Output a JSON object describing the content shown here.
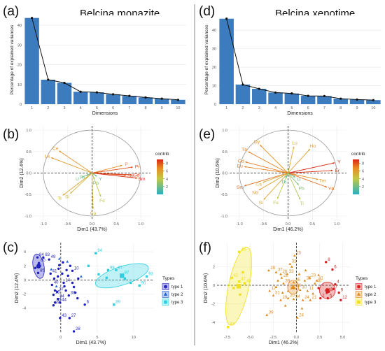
{
  "chart_data": [
    {
      "panel": "(a)",
      "type": "bar",
      "title": "Belcina monazite",
      "xlabel": "Dimensions",
      "ylabel": "Percentage of explained variances",
      "categories": [
        "1",
        "2",
        "3",
        "4",
        "5",
        "6",
        "7",
        "8",
        "9",
        "10"
      ],
      "values": [
        43.7,
        12.4,
        10.8,
        6.3,
        6.0,
        5.0,
        4.2,
        3.4,
        2.8,
        2.2
      ],
      "ylim": [
        0,
        45
      ],
      "yticks": [
        "0",
        "10",
        "20",
        "30",
        "40"
      ]
    },
    {
      "panel": "(d)",
      "type": "bar",
      "title": "Belcina xenotime",
      "xlabel": "Dimensions",
      "ylabel": "Percentage of explained variances",
      "categories": [
        "1",
        "2",
        "3",
        "4",
        "5",
        "6",
        "7",
        "8",
        "9",
        "10"
      ],
      "values": [
        46.2,
        10.6,
        8.3,
        6.3,
        5.8,
        4.5,
        4.4,
        3.0,
        2.5,
        2.2
      ],
      "ylim": [
        0,
        48
      ],
      "yticks": [
        "0",
        "10",
        "20",
        "30",
        "40"
      ]
    },
    {
      "panel": "(b)",
      "type": "scatter",
      "subtype": "pca-variable-correlation-circle",
      "xlabel": "Dim1 (43.7%)",
      "ylabel": "Dim2 (12.4%)",
      "xlim": [
        -1.2,
        1.2
      ],
      "ylim": [
        -1.1,
        1.1
      ],
      "xticks": [
        "-1.0",
        "-0.5",
        "0.0",
        "0.5",
        "1.0"
      ],
      "yticks": [
        "-1.0",
        "-0.5",
        "0.0",
        "0.5",
        "1.0"
      ],
      "legend_title": "contrib",
      "legend_ticks": [
        "8",
        "6",
        "4",
        "2"
      ],
      "legend_range": [
        0,
        9
      ],
      "vectors": [
        {
          "label": "Ce",
          "x": -0.68,
          "y": 0.52,
          "c": 6.5
        },
        {
          "label": "La",
          "x": -0.84,
          "y": 0.36,
          "c": 6.2
        },
        {
          "label": "P",
          "x": 0.62,
          "y": 0.18,
          "c": 6.8
        },
        {
          "label": "Pr",
          "x": 0.84,
          "y": 0.14,
          "c": 8.0
        },
        {
          "label": "Sm",
          "x": 0.93,
          "y": -0.12,
          "c": 8.8
        },
        {
          "label": "Nd",
          "x": 0.7,
          "y": -0.05,
          "c": 8.2
        },
        {
          "label": "Gd",
          "x": 0.82,
          "y": -0.04,
          "c": 8.5
        },
        {
          "label": "U",
          "x": -0.22,
          "y": -0.1,
          "c": 2.0
        },
        {
          "label": "Y",
          "x": 0.1,
          "y": -0.08,
          "c": 1.5
        },
        {
          "label": "Th",
          "x": -0.12,
          "y": -0.06,
          "c": 1.8
        },
        {
          "label": "Pb",
          "x": 0.05,
          "y": -0.15,
          "c": 2.5
        },
        {
          "label": "Ti",
          "x": -0.6,
          "y": -0.52,
          "c": 5.5
        },
        {
          "label": "Si",
          "x": -0.45,
          "y": -0.48,
          "c": 5.0
        },
        {
          "label": "Fe",
          "x": 0.18,
          "y": -0.55,
          "c": 4.0
        },
        {
          "label": "Ca",
          "x": 0.02,
          "y": -0.84,
          "c": 5.0
        }
      ]
    },
    {
      "panel": "(e)",
      "type": "scatter",
      "subtype": "pca-variable-correlation-circle",
      "xlabel": "Dim1 (46.2%)",
      "ylabel": "Dim2 (10.6%)",
      "xlim": [
        -1.2,
        1.2
      ],
      "ylim": [
        -1.1,
        1.1
      ],
      "xticks": [
        "-1.0",
        "-0.5",
        "0.0",
        "0.5",
        "1.0"
      ],
      "yticks": [
        "-1.0",
        "-0.5",
        "0.0",
        "0.5",
        "1.0"
      ],
      "legend_title": "contrib",
      "legend_ticks": [
        "8",
        "6",
        "4",
        "2"
      ],
      "legend_range": [
        0,
        9
      ],
      "vectors": [
        {
          "label": "Dy",
          "x": -0.58,
          "y": 0.66,
          "c": 6.5
        },
        {
          "label": "Tb",
          "x": -0.82,
          "y": 0.5,
          "c": 7.0
        },
        {
          "label": "Gd",
          "x": -0.88,
          "y": 0.26,
          "c": 7.2
        },
        {
          "label": "Eu",
          "x": -0.9,
          "y": 0.15,
          "c": 7.0
        },
        {
          "label": "Sm",
          "x": -0.9,
          "y": -0.3,
          "c": 7.5
        },
        {
          "label": "Nd",
          "x": -0.6,
          "y": -0.4,
          "c": 6.0
        },
        {
          "label": "Si",
          "x": -0.5,
          "y": -0.62,
          "c": 5.5
        },
        {
          "label": "Fe",
          "x": -0.22,
          "y": -0.6,
          "c": 4.0
        },
        {
          "label": "Ca",
          "x": -0.52,
          "y": -0.22,
          "c": 5.0
        },
        {
          "label": "Er",
          "x": 0.92,
          "y": 0.06,
          "c": 8.8
        },
        {
          "label": "Y",
          "x": 0.96,
          "y": 0.24,
          "c": 9.0
        },
        {
          "label": "Tm",
          "x": 0.62,
          "y": -0.15,
          "c": 6.5
        },
        {
          "label": "Yb",
          "x": 0.8,
          "y": -0.33,
          "c": 7.5
        },
        {
          "label": "Ho",
          "x": 0.45,
          "y": 0.56,
          "c": 6.0
        },
        {
          "label": "Lu",
          "x": 0.12,
          "y": 0.62,
          "c": 5.5
        },
        {
          "label": "Ti",
          "x": 0.25,
          "y": -0.62,
          "c": 3.5
        },
        {
          "label": "U",
          "x": 0.15,
          "y": -0.1,
          "c": 1.5
        },
        {
          "label": "Th",
          "x": -0.05,
          "y": -0.12,
          "c": 1.5
        },
        {
          "label": "Pb",
          "x": 0.22,
          "y": -0.28,
          "c": 2.5
        }
      ]
    },
    {
      "panel": "(c)",
      "type": "scatter",
      "subtype": "pca-individuals",
      "xlabel": "Dim1 (43.7%)",
      "ylabel": "Dim2 (12.4%)",
      "xlim": [
        -4.5,
        12.8
      ],
      "ylim": [
        -7.6,
        5.3
      ],
      "xticks": [
        "0",
        "5",
        "10"
      ],
      "xtickvals": [
        0,
        5,
        10
      ],
      "yticks": [
        "4",
        "2",
        "0",
        "-2",
        "-4"
      ],
      "ytickvals": [
        4,
        2,
        0,
        -2,
        -4
      ],
      "legend_title": "Types",
      "series": [
        {
          "name": "type 1",
          "marker": "circle",
          "color": "#1f1fbf",
          "points": [
            [
              -3.2,
              3.2,
              "84"
            ],
            [
              -2.4,
              3.2,
              "83"
            ],
            [
              -1.6,
              2.9,
              "49"
            ],
            [
              -3.0,
              2.4,
              "80"
            ],
            [
              -3.5,
              1.7,
              "78"
            ],
            [
              -3.1,
              1.0,
              "85"
            ],
            [
              -1.4,
              0.9,
              "41"
            ],
            [
              1.6,
              1.3,
              "10"
            ],
            [
              -1.2,
              -0.7,
              "40"
            ],
            [
              0.4,
              -0.4,
              "14"
            ],
            [
              -0.5,
              -1.7,
              "37"
            ],
            [
              -1.0,
              -2.1,
              "15"
            ],
            [
              -0.4,
              -2.7,
              "34"
            ],
            [
              -0.1,
              -3.2,
              "44"
            ],
            [
              -1.0,
              -3.6,
              "39"
            ],
            [
              -0.8,
              -3.2,
              "45"
            ],
            [
              1.1,
              -2.2,
              "38"
            ],
            [
              3.3,
              -3.5,
              "6"
            ],
            [
              1.2,
              -5.4,
              "27"
            ],
            [
              -0.1,
              -5.4,
              "43"
            ],
            [
              1.8,
              -7.3,
              "28"
            ],
            [
              0.8,
              1.4,
              ""
            ],
            [
              1.0,
              0.6,
              ""
            ],
            [
              0.2,
              0.9,
              ""
            ],
            [
              -0.4,
              0.5,
              ""
            ],
            [
              1.6,
              -0.4,
              ""
            ],
            [
              2.0,
              -1.8,
              ""
            ],
            [
              -0.8,
              -1.5,
              ""
            ],
            [
              0.7,
              -1.5,
              ""
            ],
            [
              -0.2,
              2.1,
              ""
            ],
            [
              1.3,
              2.0,
              ""
            ],
            [
              2.4,
              0.2,
              ""
            ],
            [
              -0.9,
              0.2,
              ""
            ],
            [
              0.5,
              -0.9,
              ""
            ],
            [
              1.8,
              -1.0,
              ""
            ],
            [
              -0.3,
              1.6,
              ""
            ],
            [
              0.3,
              2.5,
              ""
            ],
            [
              2.3,
              -2.6,
              ""
            ]
          ]
        },
        {
          "name": "type 2",
          "marker": "triangle",
          "color": "#2060d0",
          "points": [
            [
              -0.2,
              3.0,
              ""
            ],
            [
              0.9,
              2.6,
              ""
            ],
            [
              -1.3,
              1.5,
              ""
            ],
            [
              2.8,
              0.5,
              ""
            ],
            [
              -0.6,
              -0.9,
              ""
            ]
          ]
        },
        {
          "name": "type 3",
          "marker": "square",
          "color": "#2ed0e0",
          "points": [
            [
              4.8,
              3.8,
              "94"
            ],
            [
              6.5,
              1.4,
              "98"
            ],
            [
              7.6,
              1.4,
              "97"
            ],
            [
              8.5,
              0.7,
              "87"
            ],
            [
              11.8,
              0.5,
              "93"
            ],
            [
              10.8,
              -0.8,
              "90"
            ],
            [
              7.3,
              -3.5,
              "89"
            ],
            [
              3.8,
              2.0,
              ""
            ],
            [
              5.2,
              0.8,
              ""
            ],
            [
              8.8,
              0.2,
              ""
            ],
            [
              9.6,
              -0.4,
              ""
            ],
            [
              6.3,
              0.3,
              ""
            ]
          ]
        }
      ],
      "ellipses": [
        {
          "series": "type 1",
          "cx": -3.05,
          "cy": 1.95,
          "rx": 0.75,
          "ry": 1.75,
          "rot": -10
        },
        {
          "series": "type 3",
          "cx": 8.4,
          "cy": 0.6,
          "rx": 3.8,
          "ry": 1.3,
          "rot": -18
        }
      ]
    },
    {
      "panel": "(f)",
      "type": "scatter",
      "subtype": "pca-individuals",
      "xlabel": "Dim1 (46.2%)",
      "ylabel": "Dim2 (10.6%)",
      "xlim": [
        -8.6,
        5.8
      ],
      "ylim": [
        -5.2,
        4.6
      ],
      "xticks": [
        "-7.5",
        "-5.0",
        "-2.5",
        "0.0",
        "2.5",
        "5.0"
      ],
      "xtickvals": [
        -7.5,
        -5,
        -2.5,
        0,
        2.5,
        5
      ],
      "yticks": [
        "2",
        "0",
        "-2",
        "-4"
      ],
      "ytickvals": [
        2,
        0,
        -2,
        -4
      ],
      "legend_title": "Types",
      "series": [
        {
          "name": "type 1",
          "marker": "circle",
          "color": "#d82020",
          "points": [
            [
              3.2,
              2.5,
              "8"
            ],
            [
              3.9,
              1.7,
              "6"
            ],
            [
              3.5,
              -0.7,
              "1"
            ],
            [
              4.2,
              0.1,
              "4"
            ],
            [
              4.0,
              -0.4,
              "7"
            ],
            [
              3.3,
              -0.8,
              "3"
            ],
            [
              3.4,
              -1.4,
              "5"
            ],
            [
              4.6,
              -0.8,
              "9"
            ],
            [
              4.8,
              -1.6,
              "12"
            ],
            [
              2.6,
              -1.4,
              "2"
            ],
            [
              2.4,
              -0.3,
              ""
            ]
          ]
        },
        {
          "name": "type 2",
          "marker": "triangle",
          "color": "#e08a1a",
          "points": [
            [
              -0.2,
              3.2,
              "15"
            ],
            [
              -0.7,
              2.3,
              "32"
            ],
            [
              -3.0,
              1.6,
              "28"
            ],
            [
              -2.2,
              1.4,
              "37"
            ],
            [
              -1.7,
              1.2,
              "26"
            ],
            [
              -1.6,
              0.8,
              "22"
            ],
            [
              -1.0,
              1.2,
              "33"
            ],
            [
              -0.3,
              0.3,
              "35"
            ],
            [
              1.4,
              0.8,
              "23"
            ],
            [
              0.9,
              0.5,
              "25"
            ],
            [
              -2.9,
              -0.6,
              "17"
            ],
            [
              -1.4,
              0.2,
              "39"
            ],
            [
              -0.9,
              -0.6,
              "36"
            ],
            [
              -0.2,
              -0.3,
              "38"
            ],
            [
              0.4,
              -0.5,
              "30"
            ],
            [
              1.2,
              -0.6,
              "11"
            ],
            [
              -2.5,
              -1.1,
              "31"
            ],
            [
              -1.7,
              -1.6,
              "29"
            ],
            [
              -0.9,
              -1.4,
              "20"
            ],
            [
              -0.3,
              -1.5,
              "34"
            ],
            [
              0.7,
              -1.6,
              "24"
            ],
            [
              1.5,
              -1.6,
              "21"
            ],
            [
              0.1,
              -3.5,
              "24"
            ],
            [
              2.2,
              0.5,
              "41"
            ],
            [
              2.0,
              0.2,
              "40"
            ],
            [
              -3.2,
              -3.2,
              "39"
            ],
            [
              -2.2,
              -0.2,
              ""
            ],
            [
              -1.2,
              -2.2,
              ""
            ],
            [
              1.0,
              1.6,
              ""
            ],
            [
              -0.5,
              2.0,
              ""
            ],
            [
              0.3,
              1.2,
              ""
            ],
            [
              1.8,
              -0.9,
              ""
            ],
            [
              -2.0,
              0.5,
              ""
            ],
            [
              0.6,
              -2.5,
              ""
            ],
            [
              -1.5,
              -0.8,
              ""
            ],
            [
              2.4,
              1.1,
              ""
            ]
          ]
        },
        {
          "name": "type 3",
          "marker": "square",
          "color": "#f0e020",
          "points": [
            [
              -6.2,
              3.6,
              "46"
            ],
            [
              -7.0,
              0.8,
              "42"
            ],
            [
              -6.2,
              0.4,
              "47"
            ],
            [
              -5.6,
              0.2,
              "48"
            ],
            [
              -6.8,
              -0.3,
              ""
            ],
            [
              -6.1,
              -1.0,
              ""
            ],
            [
              -7.4,
              -4.5,
              "43"
            ],
            [
              -5.8,
              1.4,
              ""
            ]
          ]
        }
      ],
      "ellipses": [
        {
          "series": "type 1",
          "cx": 3.35,
          "cy": -0.55,
          "rx": 0.85,
          "ry": 0.9,
          "rot": 0
        },
        {
          "series": "type 2",
          "cx": -0.35,
          "cy": -0.2,
          "rx": 0.6,
          "ry": 0.75,
          "rot": 0
        },
        {
          "series": "type 3",
          "cx": -6.25,
          "cy": -0.1,
          "rx": 1.1,
          "ry": 4.3,
          "rot": 12
        }
      ]
    }
  ]
}
